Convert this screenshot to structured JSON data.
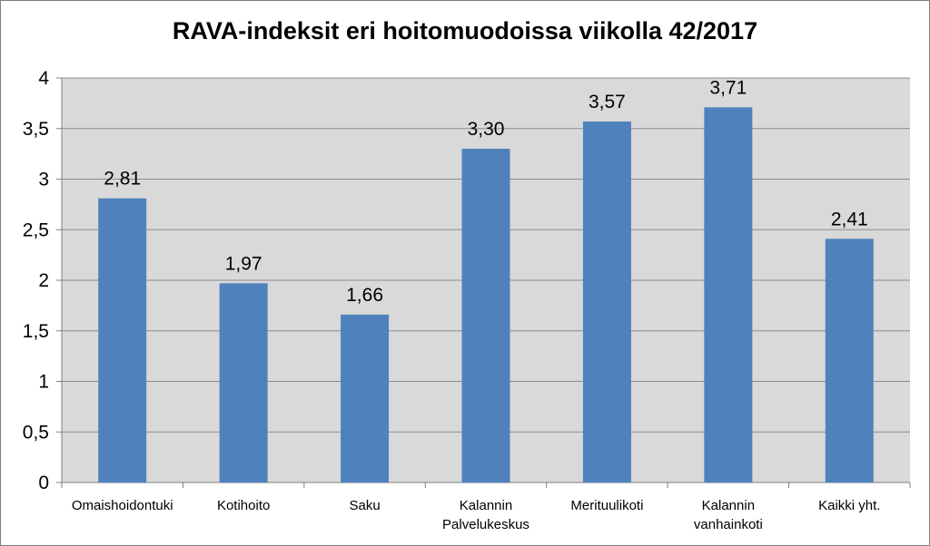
{
  "chart_data": {
    "type": "bar",
    "title": "RAVA-indeksit eri hoitomuodoissa viikolla 42/2017",
    "categories": [
      [
        "Omaishoidontuki"
      ],
      [
        "Kotihoito"
      ],
      [
        "Saku"
      ],
      [
        "Kalannin",
        "Palvelukeskus"
      ],
      [
        "Merituulikoti"
      ],
      [
        "Kalannin",
        "vanhainkoti"
      ],
      [
        "Kaikki yht."
      ]
    ],
    "values": [
      2.81,
      1.97,
      1.66,
      3.3,
      3.57,
      3.71,
      2.41
    ],
    "data_labels": [
      "2,81",
      "1,97",
      "1,66",
      "3,30",
      "3,57",
      "3,71",
      "2,41"
    ],
    "y_ticks": [
      0,
      0.5,
      1,
      1.5,
      2,
      2.5,
      3,
      3.5,
      4
    ],
    "y_tick_labels": [
      "0",
      "0,5",
      "1",
      "1,5",
      "2",
      "2,5",
      "3",
      "3,5",
      "4"
    ],
    "ylim": [
      0,
      4
    ],
    "xlabel": "",
    "ylabel": "",
    "grid": true,
    "legend": "none",
    "colors": {
      "bar": "#4f81bd",
      "plot_background": "#d9d9d9",
      "gridline": "#8c8c8c",
      "axis": "#808080"
    }
  }
}
